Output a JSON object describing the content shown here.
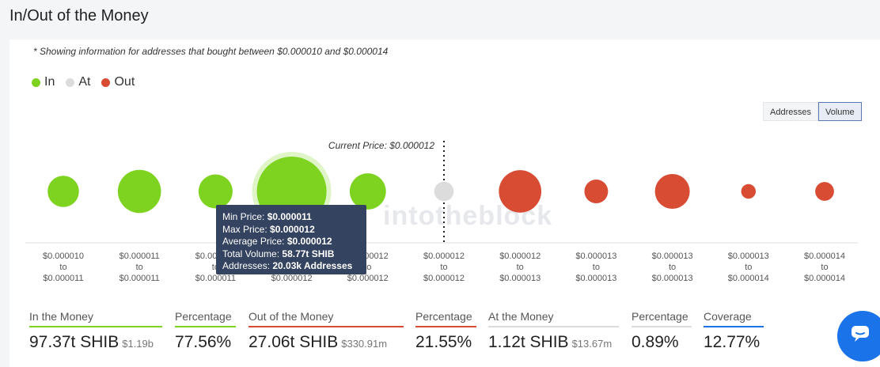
{
  "page_title": "In/Out of the Money",
  "note": "* Showing information for addresses that bought between $0.000010 and $0.000014",
  "legend": [
    {
      "label": "In",
      "color": "#7ed321"
    },
    {
      "label": "At",
      "color": "#dcdcdc"
    },
    {
      "label": "Out",
      "color": "#d84c34"
    }
  ],
  "toggle": {
    "addresses": "Addresses",
    "volume": "Volume",
    "selected": "Volume"
  },
  "current_price_label": "Current Price: $0.000012",
  "watermark": "intotheblock",
  "buckets": [
    {
      "range_top": "$0.000010",
      "to": "to",
      "range_bottom": "$0.000011",
      "status": "in",
      "size": 0.45
    },
    {
      "range_top": "$0.000011",
      "to": "to",
      "range_bottom": "$0.000011",
      "status": "in",
      "size": 0.62
    },
    {
      "range_top": "$0.000011",
      "to": "to",
      "range_bottom": "$0.000011",
      "status": "in",
      "size": 0.49
    },
    {
      "range_top": "$0.000011",
      "to": "to",
      "range_bottom": "$0.000012",
      "status": "in",
      "size": 1.0,
      "highlighted": true
    },
    {
      "range_top": "$0.000012",
      "to": "to",
      "range_bottom": "$0.000012",
      "status": "in",
      "size": 0.52
    },
    {
      "range_top": "$0.000012",
      "to": "to",
      "range_bottom": "$0.000012",
      "status": "at",
      "size": 0.28
    },
    {
      "range_top": "$0.000012",
      "to": "to",
      "range_bottom": "$0.000013",
      "status": "out",
      "size": 0.61
    },
    {
      "range_top": "$0.000013",
      "to": "to",
      "range_bottom": "$0.000013",
      "status": "out",
      "size": 0.34
    },
    {
      "range_top": "$0.000013",
      "to": "to",
      "range_bottom": "$0.000013",
      "status": "out",
      "size": 0.5
    },
    {
      "range_top": "$0.000013",
      "to": "to",
      "range_bottom": "$0.000014",
      "status": "out",
      "size": 0.21
    },
    {
      "range_top": "$0.000014",
      "to": "to",
      "range_bottom": "$0.000014",
      "status": "out",
      "size": 0.27
    }
  ],
  "tooltip": {
    "min_label": "Min Price:",
    "min_value": "$0.000011",
    "max_label": "Max Price:",
    "max_value": "$0.000012",
    "avg_label": "Average Price:",
    "avg_value": "$0.000012",
    "vol_label": "Total Volume:",
    "vol_value": "58.77t SHIB",
    "addr_label": "Addresses:",
    "addr_value": "20.03k Addresses"
  },
  "stats": [
    {
      "label": "In the Money",
      "value": "97.37t SHIB",
      "sub": "$1.19b",
      "color": "#7ed321"
    },
    {
      "label": "Percentage",
      "value": "77.56%",
      "sub": "",
      "color": "#7ed321"
    },
    {
      "label": "Out of the Money",
      "value": "27.06t SHIB",
      "sub": "$330.91m",
      "color": "#d84c34"
    },
    {
      "label": "Percentage",
      "value": "21.55%",
      "sub": "",
      "color": "#d84c34"
    },
    {
      "label": "At the Money",
      "value": "1.12t SHIB",
      "sub": "$13.67m",
      "color": "#dcdcdc"
    },
    {
      "label": "Percentage",
      "value": "0.89%",
      "sub": "",
      "color": "#dcdcdc"
    },
    {
      "label": "Coverage",
      "value": "12.77%",
      "sub": "",
      "color": "#1a73e8"
    }
  ]
}
